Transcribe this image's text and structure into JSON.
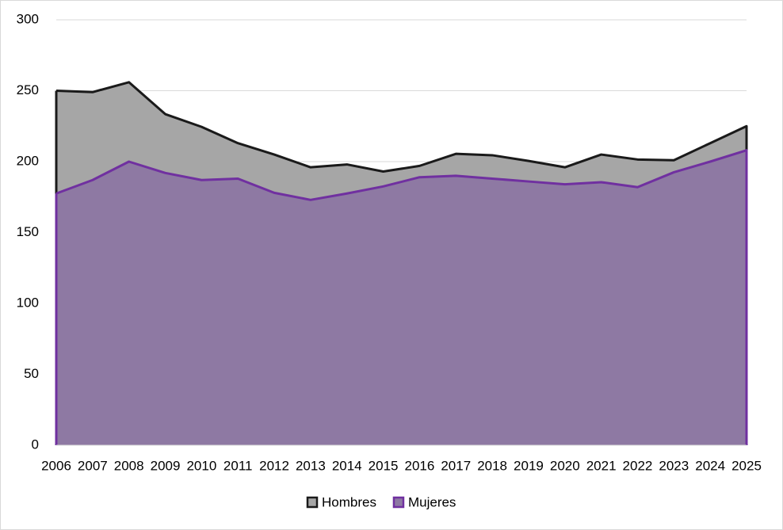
{
  "chart_data": {
    "type": "area",
    "categories": [
      "2006",
      "2007",
      "2008",
      "2009",
      "2010",
      "2011",
      "2012",
      "2013",
      "2014",
      "2015",
      "2016",
      "2017",
      "2018",
      "2019",
      "2020",
      "2021",
      "2022",
      "2023",
      "2024",
      "2025"
    ],
    "series": [
      {
        "name": "Hombres",
        "color": "#a6a6a6",
        "line_color": "#1a1a1a",
        "values": [
          250,
          249,
          256,
          233.5,
          224.5,
          213,
          205,
          196,
          198,
          193,
          197,
          205.5,
          204.5,
          200.5,
          196,
          205,
          201.5,
          201,
          213,
          225
        ]
      },
      {
        "name": "Mujeres",
        "color": "#8e79a3",
        "line_color": "#7030a0",
        "values": [
          177.5,
          187,
          200,
          192,
          187,
          188,
          178,
          173,
          177.5,
          182.5,
          189,
          190,
          188,
          186,
          184,
          185.5,
          182,
          192.5,
          200,
          208
        ]
      }
    ],
    "ylim": [
      0,
      300
    ],
    "yticks": [
      0,
      50,
      100,
      150,
      200,
      250,
      300
    ],
    "grid": true,
    "legend": "bottom"
  }
}
